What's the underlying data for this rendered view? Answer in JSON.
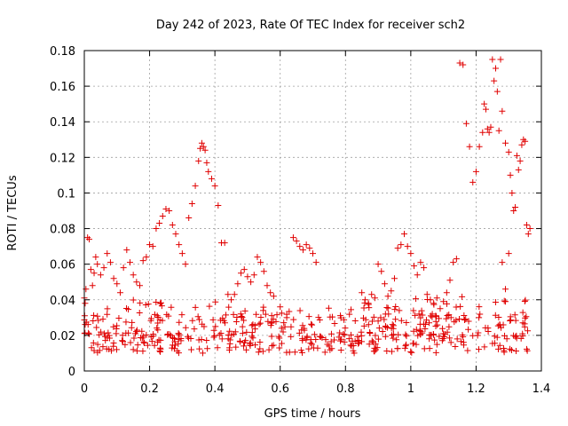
{
  "chart_data": {
    "type": "scatter",
    "title": "Day 242 of 2023, Rate Of TEC Index for receiver sch2",
    "xlabel": "GPS time / hours",
    "ylabel": "ROTI / TECUs",
    "xlim": [
      0,
      1.4
    ],
    "ylim": [
      0,
      0.18
    ],
    "x_ticks": [
      "0",
      "0.2",
      "0.4",
      "0.6",
      "0.8",
      "1",
      "1.2",
      "1.4"
    ],
    "y_ticks": [
      "0",
      "0.02",
      "0.04",
      "0.06",
      "0.08",
      "0.1",
      "0.12",
      "0.14",
      "0.16",
      "0.18"
    ],
    "grid": true,
    "marker": "+",
    "color": "#e00000",
    "points": [
      [
        0.0,
        0.041
      ],
      [
        0.005,
        0.046
      ],
      [
        0.01,
        0.075
      ],
      [
        0.015,
        0.074
      ],
      [
        0.02,
        0.057
      ],
      [
        0.025,
        0.048
      ],
      [
        0.03,
        0.055
      ],
      [
        0.035,
        0.064
      ],
      [
        0.04,
        0.06
      ],
      [
        0.05,
        0.054
      ],
      [
        0.06,
        0.058
      ],
      [
        0.07,
        0.066
      ],
      [
        0.08,
        0.061
      ],
      [
        0.09,
        0.052
      ],
      [
        0.1,
        0.049
      ],
      [
        0.11,
        0.044
      ],
      [
        0.12,
        0.058
      ],
      [
        0.13,
        0.068
      ],
      [
        0.14,
        0.061
      ],
      [
        0.15,
        0.054
      ],
      [
        0.16,
        0.05
      ],
      [
        0.17,
        0.048
      ],
      [
        0.18,
        0.062
      ],
      [
        0.19,
        0.064
      ],
      [
        0.2,
        0.071
      ],
      [
        0.21,
        0.07
      ],
      [
        0.22,
        0.08
      ],
      [
        0.23,
        0.083
      ],
      [
        0.24,
        0.087
      ],
      [
        0.25,
        0.091
      ],
      [
        0.26,
        0.09
      ],
      [
        0.27,
        0.082
      ],
      [
        0.28,
        0.077
      ],
      [
        0.29,
        0.071
      ],
      [
        0.3,
        0.066
      ],
      [
        0.31,
        0.06
      ],
      [
        0.32,
        0.086
      ],
      [
        0.33,
        0.094
      ],
      [
        0.34,
        0.104
      ],
      [
        0.35,
        0.118
      ],
      [
        0.355,
        0.125
      ],
      [
        0.36,
        0.128
      ],
      [
        0.365,
        0.126
      ],
      [
        0.37,
        0.124
      ],
      [
        0.375,
        0.117
      ],
      [
        0.38,
        0.112
      ],
      [
        0.39,
        0.108
      ],
      [
        0.4,
        0.104
      ],
      [
        0.41,
        0.093
      ],
      [
        0.42,
        0.072
      ],
      [
        0.43,
        0.072
      ],
      [
        0.44,
        0.043
      ],
      [
        0.45,
        0.04
      ],
      [
        0.46,
        0.043
      ],
      [
        0.47,
        0.049
      ],
      [
        0.48,
        0.055
      ],
      [
        0.49,
        0.057
      ],
      [
        0.5,
        0.053
      ],
      [
        0.51,
        0.05
      ],
      [
        0.52,
        0.054
      ],
      [
        0.53,
        0.064
      ],
      [
        0.54,
        0.061
      ],
      [
        0.55,
        0.056
      ],
      [
        0.56,
        0.048
      ],
      [
        0.57,
        0.044
      ],
      [
        0.58,
        0.042
      ],
      [
        0.6,
        0.036
      ],
      [
        0.62,
        0.03
      ],
      [
        0.64,
        0.075
      ],
      [
        0.65,
        0.073
      ],
      [
        0.66,
        0.07
      ],
      [
        0.67,
        0.068
      ],
      [
        0.68,
        0.071
      ],
      [
        0.69,
        0.069
      ],
      [
        0.7,
        0.066
      ],
      [
        0.71,
        0.061
      ],
      [
        0.85,
        0.044
      ],
      [
        0.86,
        0.04
      ],
      [
        0.87,
        0.038
      ],
      [
        0.88,
        0.043
      ],
      [
        0.89,
        0.041
      ],
      [
        0.9,
        0.06
      ],
      [
        0.91,
        0.056
      ],
      [
        0.92,
        0.049
      ],
      [
        0.93,
        0.042
      ],
      [
        0.94,
        0.045
      ],
      [
        0.95,
        0.052
      ],
      [
        0.96,
        0.069
      ],
      [
        0.97,
        0.071
      ],
      [
        0.98,
        0.077
      ],
      [
        0.99,
        0.07
      ],
      [
        1.0,
        0.066
      ],
      [
        1.01,
        0.059
      ],
      [
        1.02,
        0.054
      ],
      [
        1.03,
        0.061
      ],
      [
        1.04,
        0.058
      ],
      [
        1.05,
        0.043
      ],
      [
        1.06,
        0.04
      ],
      [
        1.07,
        0.038
      ],
      [
        1.08,
        0.041
      ],
      [
        1.09,
        0.035
      ],
      [
        1.1,
        0.039
      ],
      [
        1.11,
        0.044
      ],
      [
        1.12,
        0.051
      ],
      [
        1.13,
        0.061
      ],
      [
        1.14,
        0.063
      ],
      [
        1.15,
        0.173
      ],
      [
        1.16,
        0.172
      ],
      [
        1.17,
        0.139
      ],
      [
        1.18,
        0.126
      ],
      [
        1.19,
        0.106
      ],
      [
        1.2,
        0.112
      ],
      [
        1.21,
        0.126
      ],
      [
        1.22,
        0.134
      ],
      [
        1.225,
        0.15
      ],
      [
        1.23,
        0.147
      ],
      [
        1.235,
        0.136
      ],
      [
        1.24,
        0.134
      ],
      [
        1.245,
        0.137
      ],
      [
        1.25,
        0.175
      ],
      [
        1.255,
        0.163
      ],
      [
        1.26,
        0.17
      ],
      [
        1.265,
        0.157
      ],
      [
        1.27,
        0.135
      ],
      [
        1.275,
        0.175
      ],
      [
        1.28,
        0.146
      ],
      [
        1.29,
        0.128
      ],
      [
        1.3,
        0.123
      ],
      [
        1.305,
        0.11
      ],
      [
        1.31,
        0.1
      ],
      [
        1.315,
        0.09
      ],
      [
        1.32,
        0.092
      ],
      [
        1.325,
        0.121
      ],
      [
        1.33,
        0.113
      ],
      [
        1.335,
        0.118
      ],
      [
        1.34,
        0.127
      ],
      [
        1.345,
        0.13
      ],
      [
        1.35,
        0.129
      ],
      [
        1.355,
        0.082
      ],
      [
        1.36,
        0.077
      ],
      [
        1.365,
        0.08
      ],
      [
        1.3,
        0.066
      ],
      [
        1.29,
        0.046
      ],
      [
        1.28,
        0.061
      ]
    ]
  }
}
